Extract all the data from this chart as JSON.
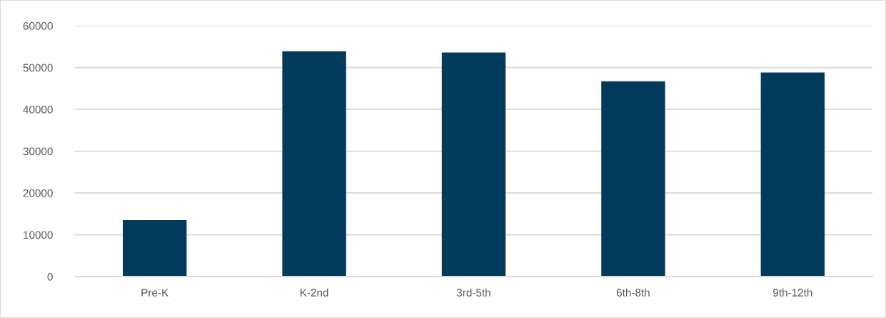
{
  "chart_data": {
    "type": "bar",
    "categories": [
      "Pre-K",
      "K-2nd",
      "3rd-5th",
      "6th-8th",
      "9th-12th"
    ],
    "values": [
      13500,
      53900,
      53600,
      46700,
      48800
    ],
    "color": "#023a5b",
    "ylim": [
      0,
      60000
    ],
    "yticks": [
      0,
      10000,
      20000,
      30000,
      40000,
      50000,
      60000
    ],
    "grid": "y"
  }
}
